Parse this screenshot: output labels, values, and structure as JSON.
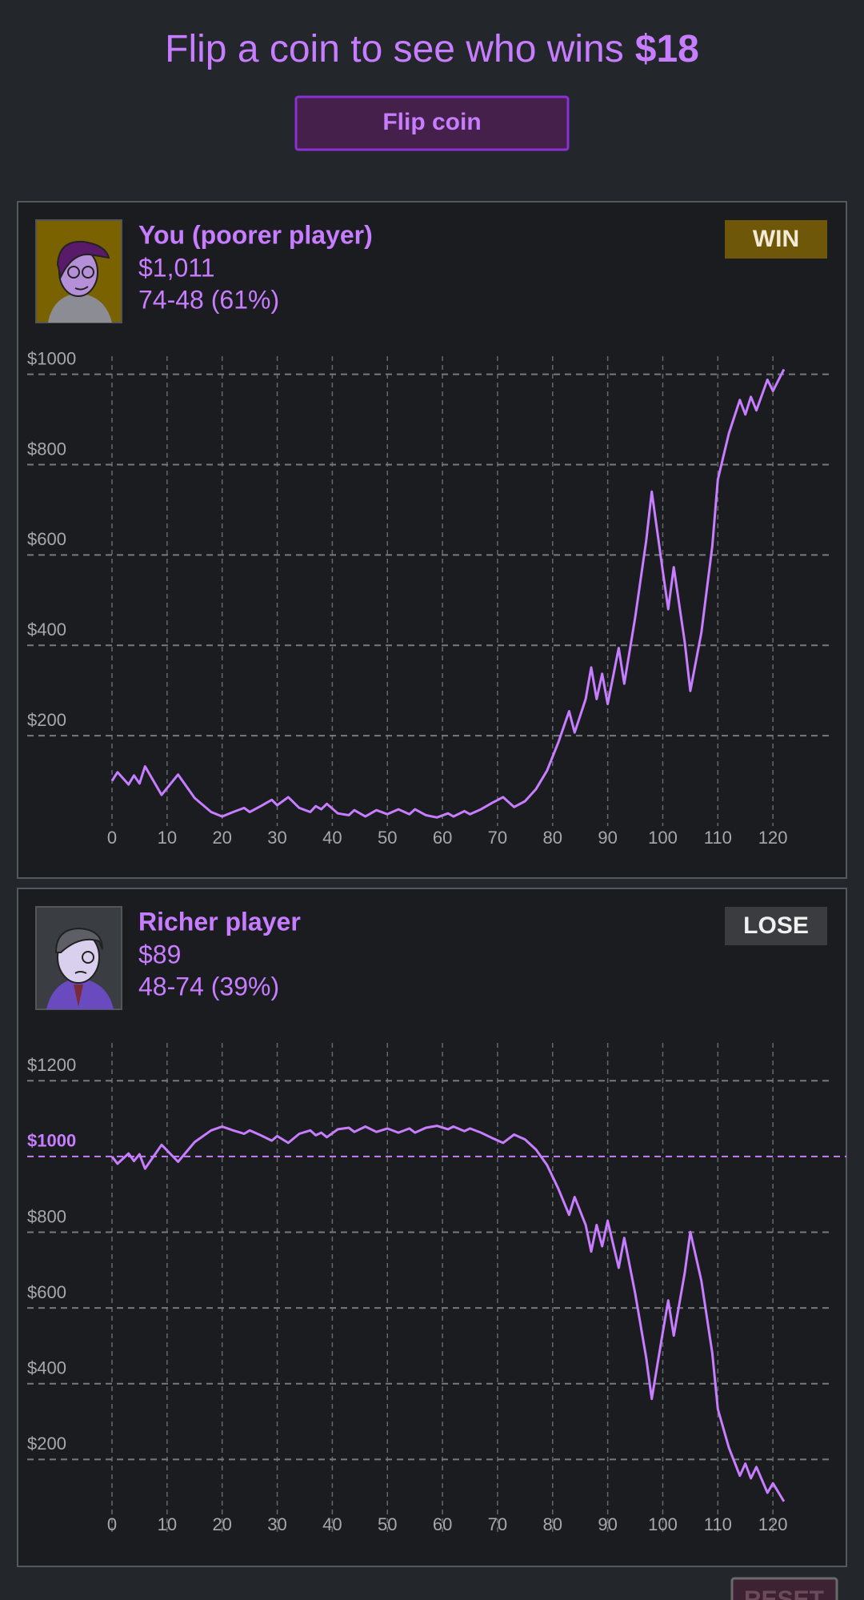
{
  "header": {
    "title": "Flip a coin to see who wins",
    "amount": "$18"
  },
  "button": "Flip coin",
  "players": [
    {
      "name": "You (poorer player)",
      "money": "$1,011",
      "record": "74-48 (61%)",
      "badge": "WIN",
      "badge_color": "#6e5708"
    },
    {
      "name": "Richer player",
      "money": "$89",
      "record": "48-74 (39%)",
      "badge": "LOSE",
      "badge_color": "#3a3c3f"
    }
  ],
  "reset": "RESET",
  "chart_data": [
    {
      "type": "line",
      "x": [
        0,
        1,
        3,
        4,
        5,
        6,
        9,
        12,
        15,
        18,
        20,
        22,
        24,
        25,
        27,
        29,
        30,
        32,
        34,
        36,
        37,
        38,
        39,
        41,
        43,
        44,
        46,
        48,
        50,
        52,
        54,
        55,
        57,
        59,
        61,
        62,
        64,
        65,
        67,
        69,
        71,
        73,
        75,
        77,
        79,
        81,
        83,
        84,
        86,
        87,
        88,
        89,
        90,
        92,
        93,
        95,
        97,
        98,
        100,
        101,
        102,
        104,
        105,
        107,
        109,
        110,
        112,
        114,
        115,
        116,
        117,
        119,
        120,
        122
      ],
      "series": [
        {
          "name": "You (poorer player)",
          "color": "#c77dff",
          "values": [
            100,
            119,
            92,
            112,
            94,
            132,
            69,
            114,
            62,
            31,
            21,
            31,
            40,
            31,
            44,
            58,
            46,
            64,
            40,
            31,
            44,
            37,
            49,
            28,
            24,
            35,
            21,
            35,
            26,
            37,
            26,
            37,
            24,
            19,
            28,
            21,
            33,
            26,
            37,
            51,
            64,
            42,
            55,
            82,
            123,
            184,
            254,
            207,
            281,
            351,
            281,
            337,
            270,
            394,
            315,
            462,
            632,
            740,
            564,
            480,
            573,
            406,
            299,
            428,
            620,
            767,
            869,
            943,
            911,
            950,
            920,
            988,
            963,
            1011
          ]
        }
      ],
      "xlim": [
        0,
        130
      ],
      "xticks": [
        0,
        10,
        20,
        30,
        40,
        50,
        60,
        70,
        80,
        90,
        100,
        110,
        120
      ],
      "ylim": [
        0,
        1040
      ],
      "yticks": [
        {
          "value": 200,
          "label": "$200"
        },
        {
          "value": 400,
          "label": "$400"
        },
        {
          "value": 600,
          "label": "$600"
        },
        {
          "value": 800,
          "label": "$800"
        },
        {
          "value": 1000,
          "label": "$1000"
        }
      ],
      "grid": true
    },
    {
      "type": "line",
      "x": [
        0,
        1,
        3,
        4,
        5,
        6,
        9,
        12,
        15,
        18,
        20,
        22,
        24,
        25,
        27,
        29,
        30,
        32,
        34,
        36,
        37,
        38,
        39,
        41,
        43,
        44,
        46,
        48,
        50,
        52,
        54,
        55,
        57,
        59,
        61,
        62,
        64,
        65,
        67,
        69,
        71,
        73,
        75,
        77,
        79,
        81,
        83,
        84,
        86,
        87,
        88,
        89,
        90,
        92,
        93,
        95,
        97,
        98,
        100,
        101,
        102,
        104,
        105,
        107,
        109,
        110,
        112,
        114,
        115,
        116,
        117,
        119,
        120,
        122
      ],
      "series": [
        {
          "name": "Richer player",
          "color": "#c77dff",
          "values": [
            1000,
            981,
            1008,
            988,
            1006,
            968,
            1031,
            986,
            1038,
            1069,
            1079,
            1069,
            1060,
            1069,
            1056,
            1042,
            1054,
            1036,
            1060,
            1069,
            1056,
            1063,
            1051,
            1072,
            1076,
            1065,
            1079,
            1065,
            1074,
            1063,
            1074,
            1063,
            1076,
            1081,
            1072,
            1079,
            1067,
            1074,
            1063,
            1049,
            1036,
            1058,
            1045,
            1018,
            977,
            916,
            846,
            893,
            819,
            749,
            819,
            763,
            830,
            706,
            785,
            638,
            468,
            360,
            536,
            620,
            527,
            694,
            801,
            672,
            480,
            333,
            231,
            157,
            189,
            150,
            180,
            112,
            137,
            89
          ]
        }
      ],
      "xlim": [
        0,
        130
      ],
      "xticks": [
        0,
        10,
        20,
        30,
        40,
        50,
        60,
        70,
        80,
        90,
        100,
        110,
        120
      ],
      "ylim": [
        0,
        1300
      ],
      "yticks": [
        {
          "value": 200,
          "label": "$200"
        },
        {
          "value": 400,
          "label": "$400"
        },
        {
          "value": 600,
          "label": "$600"
        },
        {
          "value": 800,
          "label": "$800"
        },
        {
          "value": 1000,
          "label": "$1000"
        },
        {
          "value": 1200,
          "label": "$1200"
        }
      ],
      "baseline": 1000,
      "grid": true
    }
  ]
}
